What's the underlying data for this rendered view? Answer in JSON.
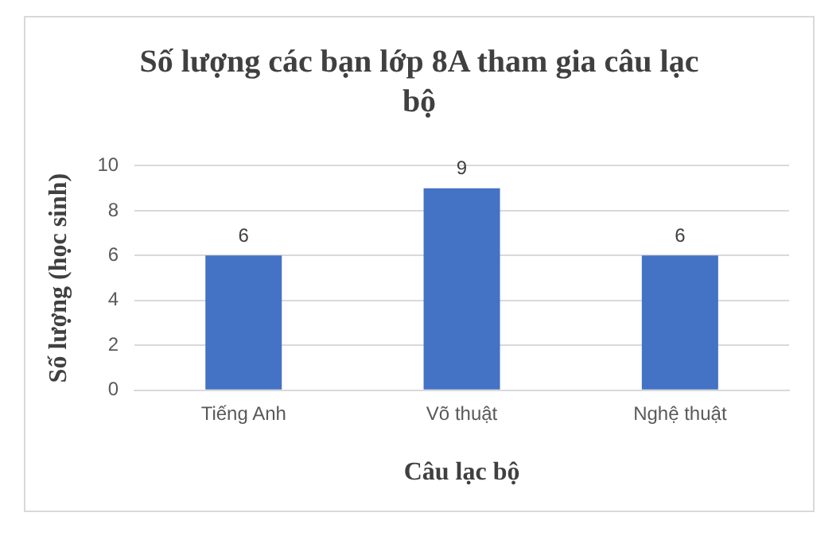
{
  "chart_data": {
    "type": "bar",
    "title": "Số lượng các bạn lớp 8A tham gia câu lạc bộ",
    "xlabel": "Câu lạc bộ",
    "ylabel": "Số lượng (học sinh)",
    "categories": [
      "Tiếng Anh",
      "Võ thuật",
      "Nghệ thuật"
    ],
    "values": [
      6,
      9,
      6
    ],
    "color": "#4472c4",
    "ylim": [
      0,
      10
    ],
    "yticks": [
      0,
      2,
      4,
      6,
      8,
      10
    ],
    "grid": "y",
    "data_labels": true,
    "legend": false
  }
}
